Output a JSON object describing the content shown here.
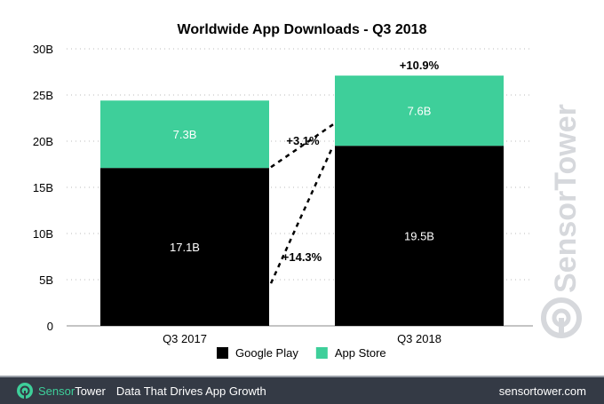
{
  "chart_data": {
    "type": "bar",
    "stacked": true,
    "title": "Worldwide App Downloads - Q3 2018",
    "categories": [
      "Q3 2017",
      "Q3 2018"
    ],
    "series": [
      {
        "name": "Google Play",
        "values": [
          17.1,
          19.5
        ],
        "labels": [
          "17.1B",
          "19.5B"
        ],
        "color": "#000000"
      },
      {
        "name": "App Store",
        "values": [
          7.3,
          7.6
        ],
        "labels": [
          "7.3B",
          "7.6B"
        ],
        "color": "#3ecf9a"
      }
    ],
    "ylim": [
      0,
      30
    ],
    "yticks": [
      0,
      5,
      10,
      15,
      20,
      25,
      30
    ],
    "ytick_labels": [
      "0",
      "5B",
      "10B",
      "15B",
      "20B",
      "25B",
      "30B"
    ],
    "grid": true,
    "legend": "bottom",
    "annotations": [
      "+3.1%",
      "+14.3%",
      "+10.9%"
    ]
  },
  "watermark": "SensorTower",
  "footer": {
    "brand_a": "Sensor",
    "brand_b": "Tower",
    "tagline": "Data That Drives App Growth",
    "site": "sensortower.com"
  }
}
